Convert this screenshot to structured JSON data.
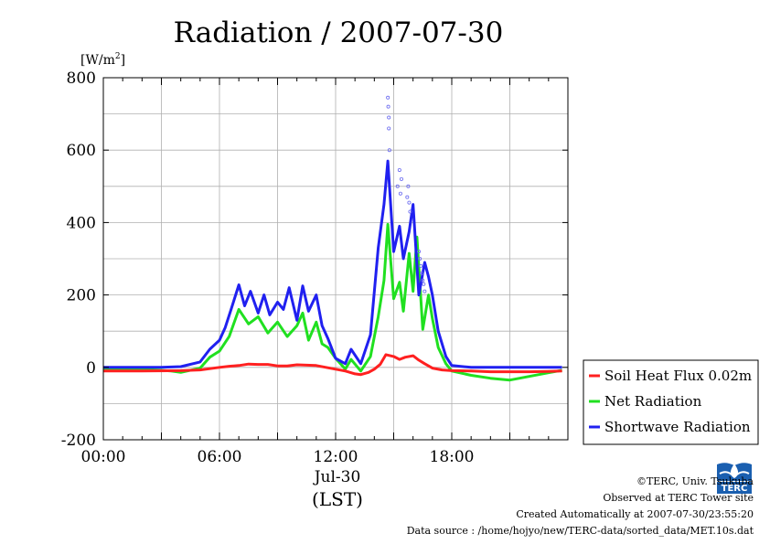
{
  "chart_data": {
    "type": "line",
    "title": "Radiation / 2007-07-30",
    "ylabel": "[W/m2]",
    "ylabel_base": "[W/m",
    "ylabel_sup": "2",
    "ylabel_close": "]",
    "xlabel_date": "Jul-30",
    "xlabel_unit": "(LST)",
    "ylim": [
      -200,
      800
    ],
    "yticks": [
      "-200",
      "0",
      "200",
      "400",
      "600",
      "800"
    ],
    "xlim": [
      0,
      24
    ],
    "xticks": [
      "00:00",
      "06:00",
      "12:00",
      "18:00"
    ],
    "grid": true,
    "legend_position": "right",
    "series": [
      {
        "name": "Soil Heat Flux 0.02m",
        "color": "#ff2020",
        "x": [
          0,
          2,
          4,
          5,
          6,
          6.5,
          7,
          7.5,
          8,
          8.5,
          9,
          9.5,
          10,
          10.5,
          11,
          11.5,
          12,
          12.5,
          13,
          13.3,
          13.7,
          14,
          14.3,
          14.6,
          15,
          15.3,
          15.6,
          16,
          16.3,
          16.6,
          17,
          17.5,
          18,
          19,
          20,
          21,
          22,
          23,
          23.7
        ],
        "y": [
          -10,
          -10,
          -9,
          -7,
          0,
          3,
          5,
          9,
          8,
          8,
          4,
          4,
          7,
          6,
          5,
          0,
          -5,
          -10,
          -18,
          -20,
          -14,
          -5,
          8,
          35,
          30,
          22,
          28,
          32,
          20,
          10,
          -2,
          -7,
          -9,
          -10,
          -12,
          -12,
          -12,
          -11,
          -10
        ]
      },
      {
        "name": "Net Radiation",
        "color": "#20e020",
        "x": [
          0,
          2,
          3.5,
          4,
          5,
          5.5,
          6,
          6.5,
          7,
          7.5,
          8,
          8.5,
          9,
          9.5,
          10,
          10.3,
          10.6,
          11,
          11.3,
          11.6,
          12,
          12.5,
          12.8,
          13.3,
          13.8,
          14.2,
          14.5,
          14.7,
          15,
          15.3,
          15.5,
          15.8,
          16,
          16.2,
          16.5,
          16.8,
          17,
          17.3,
          17.7,
          18,
          19,
          20,
          21,
          22,
          23,
          23.7
        ],
        "y": [
          -5,
          -5,
          -10,
          -14,
          -2,
          28,
          45,
          85,
          160,
          120,
          140,
          95,
          125,
          85,
          115,
          150,
          75,
          125,
          65,
          55,
          25,
          -5,
          22,
          -10,
          30,
          140,
          240,
          395,
          190,
          235,
          155,
          315,
          210,
          360,
          105,
          200,
          135,
          55,
          10,
          -10,
          -22,
          -30,
          -35,
          -25,
          -15,
          -8
        ]
      },
      {
        "name": "Shortwave Radiation",
        "color": "#2020f0",
        "x": [
          0,
          3,
          4,
          5,
          5.5,
          6,
          6.3,
          6.6,
          7,
          7.3,
          7.6,
          8,
          8.3,
          8.6,
          9,
          9.3,
          9.6,
          10,
          10.3,
          10.6,
          11,
          11.3,
          11.6,
          12,
          12.5,
          12.8,
          13.3,
          13.8,
          14.2,
          14.5,
          14.7,
          15,
          15.3,
          15.5,
          15.8,
          16,
          16.3,
          16.6,
          16.8,
          17,
          17.3,
          17.7,
          18,
          19,
          20,
          21,
          22,
          23,
          23.7
        ],
        "y": [
          0,
          0,
          2,
          15,
          50,
          75,
          110,
          160,
          228,
          170,
          210,
          150,
          200,
          145,
          180,
          160,
          220,
          130,
          225,
          155,
          200,
          115,
          80,
          25,
          10,
          50,
          10,
          90,
          330,
          450,
          570,
          320,
          390,
          300,
          375,
          450,
          200,
          290,
          250,
          200,
          100,
          30,
          5,
          0,
          0,
          0,
          0,
          0,
          0
        ]
      }
    ],
    "scatter_peaks": {
      "name": "Shortwave Radiation",
      "x": [
        14.7,
        14.72,
        14.75,
        14.75,
        14.78,
        15.2,
        15.3,
        15.35,
        15.4,
        15.7,
        15.75,
        15.8,
        15.85,
        16.3,
        16.35,
        16.4,
        16.45,
        16.5,
        16.55,
        16.6
      ],
      "y": [
        745,
        720,
        690,
        660,
        600,
        500,
        545,
        480,
        520,
        470,
        500,
        455,
        430,
        320,
        300,
        280,
        260,
        240,
        230,
        210
      ]
    }
  },
  "credits": {
    "copyright": "©TERC, Univ. Tsukuba",
    "observed": "Observed at TERC Tower site",
    "created": "Created Automatically at 2007-07-30/23:55:20",
    "source": "Data source : /home/hojyo/new/TERC-data/sorted_data/MET.10s.dat",
    "logo_text": "TERC"
  }
}
